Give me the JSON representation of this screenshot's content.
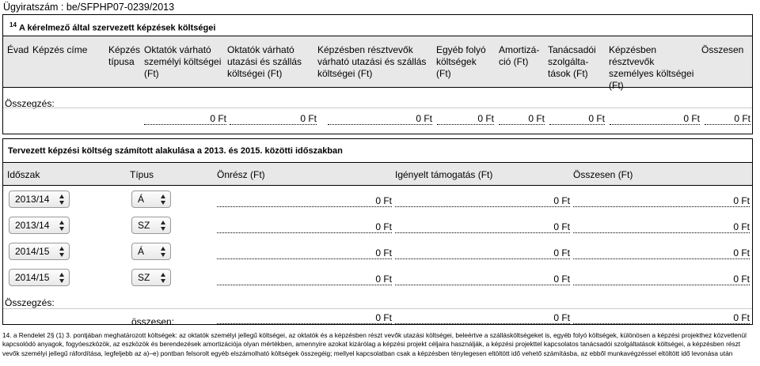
{
  "header": {
    "registration": "Ügyiratszám : be/SFPHP07-0239/2013"
  },
  "costs_table": {
    "title_sup": "14",
    "title": "A kérelmező által szervezett képzések költségei",
    "columns": [
      "Évad",
      "Képzés címe",
      "Képzés típusa",
      "Oktatók várható személyi költségei (Ft)",
      "Oktatók várható utazási és szállás költségei (Ft)",
      "Képzésben résztvevők várható utazási és szállás költségei (Ft)",
      "Egyéb folyó költségek (Ft)",
      "Amortizá-ció (Ft)",
      "Tanácsadói szolgálta-tások (Ft)",
      "Képzésben résztvevők személyes költségei (Ft)",
      "Összesen"
    ],
    "summary_label": "Összegzés:",
    "summary_values": [
      "0 Ft",
      "0 Ft",
      "0 Ft",
      "0 Ft",
      "0 Ft",
      "0 Ft",
      "0 Ft",
      "0 Ft"
    ]
  },
  "plan_table": {
    "title": "Tervezett képzési költség számított alakulása a 2013. és 2015. közötti időszakban",
    "columns": [
      "Időszak",
      "Típus",
      "Önrész (Ft)",
      "Igényelt támogatás (Ft)",
      "Összesen (Ft)"
    ],
    "rows": [
      {
        "period": "2013/14",
        "type": "Á",
        "own": "0 Ft",
        "support": "0 Ft",
        "total": "0 Ft"
      },
      {
        "period": "2013/14",
        "type": "SZ",
        "own": "0 Ft",
        "support": "0 Ft",
        "total": "0 Ft"
      },
      {
        "period": "2014/15",
        "type": "Á",
        "own": "0 Ft",
        "support": "0 Ft",
        "total": "0 Ft"
      },
      {
        "period": "2014/15",
        "type": "SZ",
        "own": "0 Ft",
        "support": "0 Ft",
        "total": "0 Ft"
      }
    ],
    "summary_label": "Összegzés:",
    "total_label": "összesen:",
    "total_own": "0 Ft",
    "total_support": "0 Ft",
    "total_total": "0 Ft"
  },
  "footnote": "14. a Rendelet 2§ (1) 3. pontjában meghatározott költségek: az oktatók személyi jellegű költségei, az oktatók és a képzésben részt vevők utazási költségei, beleértve a szállásköltségeket is, egyéb folyó költségek, különösen a képzési projekthez közvetlenül kapcsolódó anyagok, fogyóeszközök, az eszközök és berendezések amortizációja olyan mértékben, amennyire azokat kizárólag a képzési projekt céljaira használják, a képzési projekttel kapcsolatos tanácsadói szolgáltatások költségei, a képzésben részt vevők személyi jellegű ráfordítása, legfeljebb az a)–e) pontban felsorolt egyéb elszámolható költségek összegéig; mellyel kapcsolatban csak a képzésben ténylegesen eltöltött idő vehető számításba, az ebből munkavégzéssel eltöltött idő levonása után"
}
